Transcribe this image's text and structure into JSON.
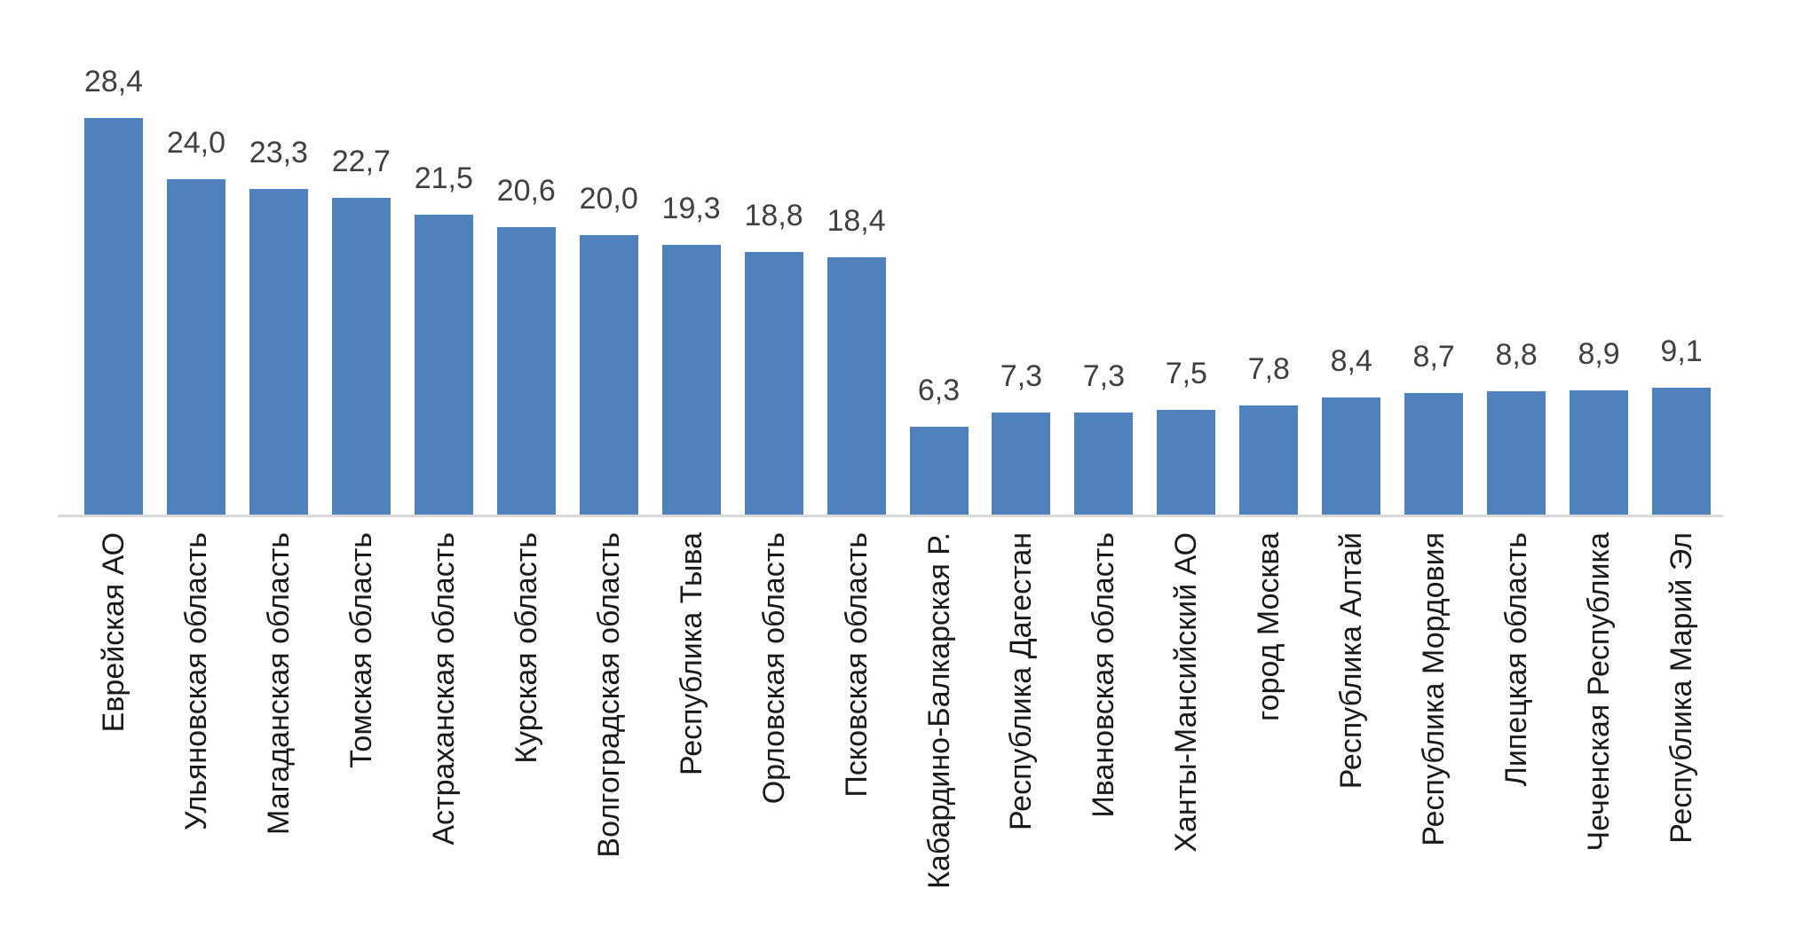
{
  "chart_data": {
    "type": "bar",
    "title": "",
    "xlabel": "",
    "ylabel": "",
    "ylim": [
      0,
      30
    ],
    "grid": "off",
    "legend": "none",
    "decimal_separator": ",",
    "categories": [
      "Еврейская АО",
      "Ульяновская область",
      "Магаданская область",
      "Томская область",
      "Астраханская область",
      "Курская область",
      "Волгоградская область",
      "Республика Тыва",
      "Орловская область",
      "Псковская область",
      "Кабардино-Балкарская Р.",
      "Республика Дагестан",
      "Ивановская область",
      "Ханты-Мансийский АО",
      "город Москва",
      "Республика Алтай",
      "Республика Мордовия",
      "Липецкая область",
      "Чеченская Республика",
      "Республика Марий Эл"
    ],
    "values": [
      28.4,
      24.0,
      23.3,
      22.7,
      21.5,
      20.6,
      20.0,
      19.3,
      18.8,
      18.4,
      6.3,
      7.3,
      7.3,
      7.5,
      7.8,
      8.4,
      8.7,
      8.8,
      8.9,
      9.1
    ],
    "value_labels": [
      "28,4",
      "24,0",
      "23,3",
      "22,7",
      "21,5",
      "20,6",
      "20,0",
      "19,3",
      "18,8",
      "18,4",
      "6,3",
      "7,3",
      "7,3",
      "7,5",
      "7,8",
      "8,4",
      "8,7",
      "8,8",
      "8,9",
      "9,1"
    ],
    "colors": {
      "bar_fill": "#4f81bd",
      "axis_line": "#d9d9d9",
      "value_label_text": "#404040",
      "category_label_text": "#1a1a1a",
      "background": "#ffffff"
    }
  }
}
